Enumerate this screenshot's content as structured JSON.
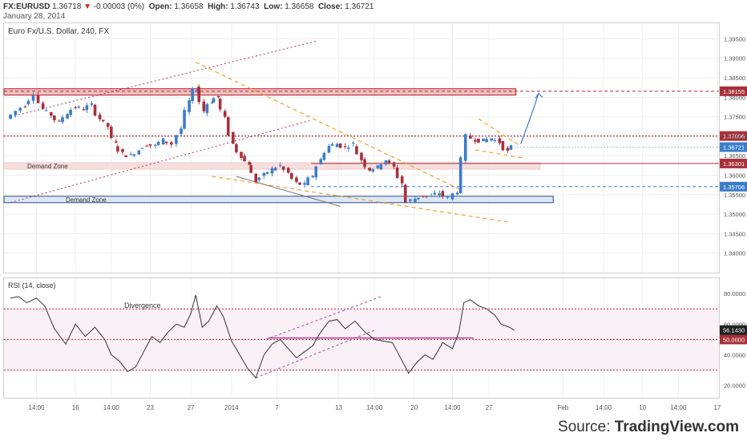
{
  "header": {
    "symbol": "FX:EURUSD",
    "last": "1.36718",
    "change": "-0.00003 (0%)",
    "open_label": "Open:",
    "open": "1.36658",
    "high_label": "High:",
    "high": "1.36743",
    "low_label": "Low:",
    "low": "1.36658",
    "close_label": "Close:",
    "close": "1.36721",
    "date": "January 28, 2014"
  },
  "source": {
    "prefix": "Source: ",
    "brand": "TradingView.com"
  },
  "colors": {
    "up": "#3a7dc9",
    "down": "#a8303a",
    "trend_orange": "#f0a020",
    "channel_red": "#b03060",
    "resistance": "#c0222a",
    "rsi_line": "#333333",
    "forecast_arrow": "#3a7dc9",
    "zone_pink": "#f7dede",
    "zone_blue": "#dde8f6"
  },
  "chart_data": [
    {
      "type": "candlestick",
      "title": "Euro Fx/U.S. Dollar, 240, FX",
      "y_axis": {
        "min": 1.335,
        "max": 1.399,
        "ticks": [
          "1.34000",
          "1.34500",
          "1.35000",
          "1.35500",
          "1.36000",
          "1.36500",
          "1.37000",
          "1.37500",
          "1.38000",
          "1.38500",
          "1.39000",
          "1.39500"
        ]
      },
      "x_axis": {
        "index_range": [
          0,
          880
        ],
        "ticks": [
          {
            "label": "14:00",
            "i": 40
          },
          {
            "label": "16",
            "i": 88
          },
          {
            "label": "14:00",
            "i": 132
          },
          {
            "label": "23",
            "i": 180
          },
          {
            "label": "27",
            "i": 230
          },
          {
            "label": "2014",
            "i": 280
          },
          {
            "label": "7",
            "i": 336
          },
          {
            "label": "13",
            "i": 412
          },
          {
            "label": "14:00",
            "i": 456
          },
          {
            "label": "20",
            "i": 505
          },
          {
            "label": "14:00",
            "i": 552
          },
          {
            "label": "27",
            "i": 597
          },
          {
            "label": "Feb",
            "i": 688
          },
          {
            "label": "14:00",
            "i": 738
          },
          {
            "label": "10",
            "i": 786
          },
          {
            "label": "14:00",
            "i": 830
          },
          {
            "label": "17",
            "i": 878
          }
        ]
      },
      "price_path": [
        [
          8,
          1.3745
        ],
        [
          20,
          1.3765
        ],
        [
          30,
          1.378
        ],
        [
          42,
          1.381
        ],
        [
          52,
          1.377
        ],
        [
          62,
          1.3755
        ],
        [
          72,
          1.3735
        ],
        [
          82,
          1.376
        ],
        [
          92,
          1.3775
        ],
        [
          102,
          1.377
        ],
        [
          112,
          1.378
        ],
        [
          122,
          1.3745
        ],
        [
          132,
          1.3725
        ],
        [
          140,
          1.368
        ],
        [
          150,
          1.3655
        ],
        [
          160,
          1.365
        ],
        [
          170,
          1.3665
        ],
        [
          180,
          1.368
        ],
        [
          190,
          1.3675
        ],
        [
          200,
          1.369
        ],
        [
          212,
          1.368
        ],
        [
          222,
          1.372
        ],
        [
          232,
          1.379
        ],
        [
          240,
          1.3825
        ],
        [
          250,
          1.3765
        ],
        [
          258,
          1.379
        ],
        [
          266,
          1.38
        ],
        [
          276,
          1.3745
        ],
        [
          286,
          1.368
        ],
        [
          296,
          1.365
        ],
        [
          304,
          1.363
        ],
        [
          314,
          1.3585
        ],
        [
          324,
          1.36
        ],
        [
          334,
          1.3615
        ],
        [
          344,
          1.3625
        ],
        [
          354,
          1.3605
        ],
        [
          364,
          1.358
        ],
        [
          374,
          1.3575
        ],
        [
          384,
          1.36
        ],
        [
          394,
          1.364
        ],
        [
          404,
          1.3675
        ],
        [
          414,
          1.368
        ],
        [
          424,
          1.3672
        ],
        [
          434,
          1.368
        ],
        [
          444,
          1.364
        ],
        [
          454,
          1.3615
        ],
        [
          464,
          1.362
        ],
        [
          474,
          1.364
        ],
        [
          484,
          1.362
        ],
        [
          494,
          1.358
        ],
        [
          500,
          1.353
        ],
        [
          510,
          1.354
        ],
        [
          520,
          1.3548
        ],
        [
          530,
          1.3545
        ],
        [
          540,
          1.3555
        ],
        [
          552,
          1.354
        ],
        [
          562,
          1.356
        ],
        [
          568,
          1.364
        ],
        [
          574,
          1.37
        ],
        [
          584,
          1.3692
        ],
        [
          594,
          1.3688
        ],
        [
          604,
          1.3695
        ],
        [
          614,
          1.3685
        ],
        [
          624,
          1.366
        ],
        [
          628,
          1.3672
        ]
      ],
      "levels": [
        {
          "value": 1.38155,
          "label": "1.38155",
          "style": "dashed",
          "color": "#a8303a"
        },
        {
          "value": 1.37006,
          "label": "1.37006",
          "style": "dotted",
          "color": "#a8303a"
        },
        {
          "value": 1.36721,
          "label": "1.36721",
          "style": "last",
          "color": "#3a7dc9"
        },
        {
          "value": 1.36301,
          "label": "1.36301",
          "style": "thin",
          "color": "#a8303a"
        },
        {
          "value": 1.35706,
          "label": "1.35706",
          "style": "dashed",
          "color": "#3a7dc9"
        }
      ],
      "zones": [
        {
          "label": "",
          "i1": 0,
          "i2": 630,
          "y1": 1.3808,
          "y2": 1.3822,
          "kind": "resistance"
        },
        {
          "label": "Demand Zone",
          "i1": 0,
          "i2": 660,
          "y1": 1.362,
          "y2": 1.3632,
          "kind": "demand-pink"
        },
        {
          "label": "Demand Zone",
          "i1": 0,
          "i2": 676,
          "y1": 1.353,
          "y2": 1.3546,
          "kind": "demand-blue"
        }
      ],
      "trend_lines": [
        {
          "kind": "orange-dashed",
          "p1": [
            236,
            1.389
          ],
          "p2": [
            560,
            1.3565
          ]
        },
        {
          "kind": "orange-dashed",
          "p1": [
            256,
            1.3597
          ],
          "p2": [
            620,
            1.348
          ]
        },
        {
          "kind": "red-dotted",
          "p1": [
            8,
            1.375
          ],
          "p2": [
            386,
            1.3945
          ]
        },
        {
          "kind": "red-dotted",
          "p1": [
            8,
            1.353
          ],
          "p2": [
            376,
            1.374
          ]
        },
        {
          "kind": "gray",
          "p1": [
            286,
            1.3597
          ],
          "p2": [
            414,
            1.352
          ]
        },
        {
          "kind": "orange-dashed",
          "p1": [
            584,
            1.3745
          ],
          "p2": [
            634,
            1.3677
          ]
        },
        {
          "kind": "orange-dashed",
          "p1": [
            580,
            1.3665
          ],
          "p2": [
            642,
            1.3643
          ]
        }
      ],
      "forecast_arrow": {
        "p1": [
          636,
          1.368
        ],
        "p2": [
          658,
          1.381
        ]
      }
    },
    {
      "type": "line",
      "title": "RSI (14, close)",
      "annotation": "Divergence",
      "y_axis": {
        "min": 12,
        "max": 90,
        "ticks": [
          "20.0000",
          "40.0000",
          "60.0000",
          "80.0000"
        ]
      },
      "levels": [
        {
          "value": 70,
          "style": "dotted"
        },
        {
          "value": 50,
          "style": "dotted",
          "label": "50.0000"
        },
        {
          "value": 30,
          "style": "dotted"
        }
      ],
      "last_value": {
        "value": 56.143,
        "label": "56.1430"
      },
      "series": [
        [
          8,
          77
        ],
        [
          18,
          78
        ],
        [
          28,
          74
        ],
        [
          40,
          77
        ],
        [
          50,
          72
        ],
        [
          62,
          57
        ],
        [
          76,
          47
        ],
        [
          88,
          60
        ],
        [
          100,
          52
        ],
        [
          112,
          58
        ],
        [
          124,
          50
        ],
        [
          132,
          40
        ],
        [
          142,
          36
        ],
        [
          152,
          29
        ],
        [
          162,
          32
        ],
        [
          172,
          42
        ],
        [
          182,
          52
        ],
        [
          192,
          48
        ],
        [
          202,
          55
        ],
        [
          212,
          60
        ],
        [
          222,
          58
        ],
        [
          230,
          67
        ],
        [
          236,
          79
        ],
        [
          244,
          58
        ],
        [
          252,
          62
        ],
        [
          262,
          72
        ],
        [
          270,
          65
        ],
        [
          280,
          49
        ],
        [
          290,
          40
        ],
        [
          300,
          31
        ],
        [
          310,
          25
        ],
        [
          320,
          40
        ],
        [
          330,
          47
        ],
        [
          340,
          50
        ],
        [
          350,
          44
        ],
        [
          360,
          38
        ],
        [
          370,
          42
        ],
        [
          380,
          46
        ],
        [
          390,
          55
        ],
        [
          400,
          62
        ],
        [
          410,
          63
        ],
        [
          420,
          57
        ],
        [
          432,
          62
        ],
        [
          444,
          55
        ],
        [
          456,
          50
        ],
        [
          466,
          49
        ],
        [
          478,
          48
        ],
        [
          488,
          38
        ],
        [
          498,
          28
        ],
        [
          508,
          35
        ],
        [
          518,
          40
        ],
        [
          528,
          37
        ],
        [
          540,
          48
        ],
        [
          552,
          44
        ],
        [
          560,
          55
        ],
        [
          566,
          74
        ],
        [
          574,
          76
        ],
        [
          584,
          72
        ],
        [
          594,
          70
        ],
        [
          604,
          66
        ],
        [
          612,
          60
        ],
        [
          622,
          58
        ],
        [
          628,
          56
        ]
      ],
      "lines": [
        {
          "kind": "purple",
          "p1": [
            325,
            51
          ],
          "p2": [
            578,
            51
          ]
        },
        {
          "kind": "purple-dotted",
          "p1": [
            322,
            50
          ],
          "p2": [
            464,
            78
          ]
        },
        {
          "kind": "purple-dotted",
          "p1": [
            310,
            25
          ],
          "p2": [
            456,
            56
          ]
        }
      ]
    }
  ]
}
